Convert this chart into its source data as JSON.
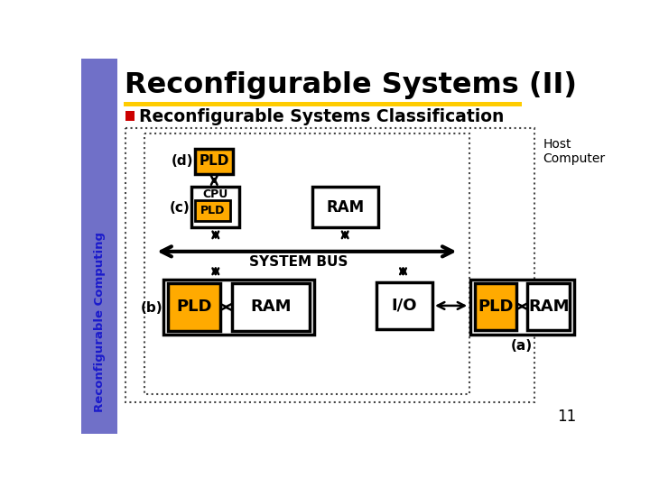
{
  "title": "Reconfigurable Systems (II)",
  "subtitle": "Reconfigurable Systems Classification",
  "slide_number": "11",
  "sidebar_text": "Reconfigurable Computing",
  "sidebar_color": "#7070c8",
  "title_color": "#000000",
  "subtitle_bullet_color": "#cc0000",
  "gold_line_color": "#ffcc00",
  "pld_fill": "#ffaa00",
  "pld_border": "#000000",
  "white_box_fill": "#ffffff",
  "white_box_border": "#000000",
  "bg_color": "#ffffff",
  "dashed_box_color": "#444444"
}
